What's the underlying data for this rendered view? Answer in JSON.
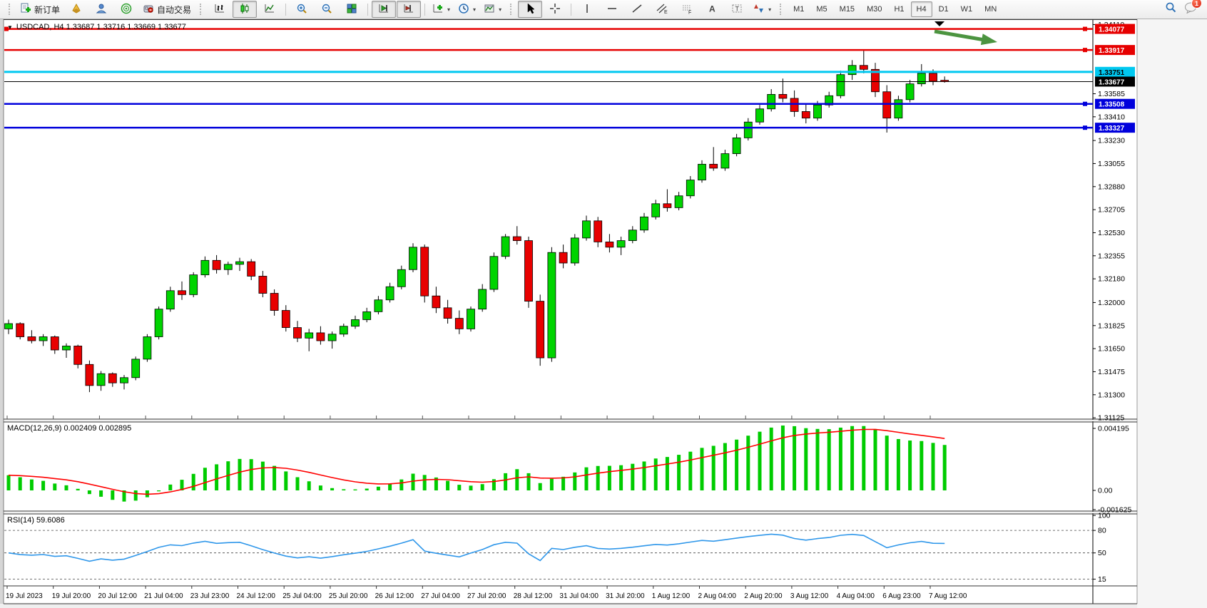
{
  "toolbar": {
    "new_order_label": "新订单",
    "auto_trading_label": "自动交易",
    "timeframes": [
      "M1",
      "M5",
      "M15",
      "M30",
      "H1",
      "H4",
      "D1",
      "W1",
      "MN"
    ],
    "active_timeframe": "H4",
    "notification_count": "1",
    "icon_glyphs": {
      "text_tool": "A",
      "label_tool": "T",
      "channel": "E",
      "fibonacci": "F"
    }
  },
  "chart_data": {
    "type": "candlestick",
    "symbol": "USDCAD",
    "timeframe": "H4",
    "title": "USDCAD, H4  1.33687 1.33716 1.33669 1.33677",
    "ohlc_current": {
      "open": 1.33687,
      "high": 1.33716,
      "low": 1.33669,
      "close": 1.33677
    },
    "colors": {
      "bull": "#00d400",
      "bear": "#e80000",
      "wick": "#000000",
      "macd_hist": "#00cc00",
      "macd_signal": "#ff0000",
      "rsi_line": "#2f97ea",
      "arrow": "#4c9440"
    },
    "price_axis": {
      "min": 1.31115,
      "max": 1.34145,
      "ticks": [
        "1.34110",
        "1.33585",
        "1.33410",
        "1.33230",
        "1.33055",
        "1.32880",
        "1.32705",
        "1.32530",
        "1.32355",
        "1.32180",
        "1.32000",
        "1.31825",
        "1.31650",
        "1.31475",
        "1.31300",
        "1.31125"
      ]
    },
    "time_axis": [
      "19 Jul 2023",
      "19 Jul 20:00",
      "20 Jul 12:00",
      "21 Jul 04:00",
      "23 Jul 23:00",
      "24 Jul 12:00",
      "25 Jul 04:00",
      "25 Jul 20:00",
      "26 Jul 12:00",
      "27 Jul 04:00",
      "27 Jul 20:00",
      "28 Jul 12:00",
      "31 Jul 04:00",
      "31 Jul 20:00",
      "1 Aug 12:00",
      "2 Aug 04:00",
      "2 Aug 20:00",
      "3 Aug 12:00",
      "4 Aug 04:00",
      "6 Aug 23:00",
      "7 Aug 12:00"
    ],
    "price_levels": [
      {
        "price": 1.34077,
        "color": "#e60000",
        "text_color": "#ffffff",
        "width": 2.5,
        "handles": [
          "left",
          "right"
        ]
      },
      {
        "price": 1.33917,
        "color": "#e60000",
        "text_color": "#ffffff",
        "width": 2.5,
        "handles": [
          "right"
        ]
      },
      {
        "price": 1.33751,
        "color": "#00c8f0",
        "text_color": "#000000",
        "width": 3,
        "handles": []
      },
      {
        "price": 1.33677,
        "color": "#000000",
        "text_color": "#ffffff",
        "width": 1,
        "handles": [],
        "current": true
      },
      {
        "price": 1.33508,
        "color": "#0000dc",
        "text_color": "#ffffff",
        "width": 2.5,
        "handles": [
          "right"
        ]
      },
      {
        "price": 1.33327,
        "color": "#0000dc",
        "text_color": "#ffffff",
        "width": 2.5,
        "handles": [
          "right"
        ]
      }
    ],
    "candles": [
      [
        1.318,
        1.3187,
        1.3176,
        1.3184
      ],
      [
        1.3184,
        1.3185,
        1.3172,
        1.3174
      ],
      [
        1.3174,
        1.3179,
        1.3169,
        1.3171
      ],
      [
        1.3171,
        1.3176,
        1.3167,
        1.3174
      ],
      [
        1.3174,
        1.3175,
        1.3161,
        1.3164
      ],
      [
        1.3164,
        1.3169,
        1.3158,
        1.3167
      ],
      [
        1.3167,
        1.3168,
        1.315,
        1.3153
      ],
      [
        1.3153,
        1.3156,
        1.3132,
        1.3137
      ],
      [
        1.3137,
        1.3148,
        1.3133,
        1.3146
      ],
      [
        1.3146,
        1.3147,
        1.3136,
        1.3139
      ],
      [
        1.3139,
        1.3145,
        1.3134,
        1.3143
      ],
      [
        1.3143,
        1.3159,
        1.3141,
        1.3157
      ],
      [
        1.3157,
        1.3176,
        1.3155,
        1.3174
      ],
      [
        1.3174,
        1.3197,
        1.3172,
        1.3195
      ],
      [
        1.3195,
        1.3212,
        1.3193,
        1.3209
      ],
      [
        1.3209,
        1.3216,
        1.3202,
        1.3206
      ],
      [
        1.3206,
        1.3223,
        1.3204,
        1.3221
      ],
      [
        1.3221,
        1.3235,
        1.3219,
        1.3232
      ],
      [
        1.3232,
        1.3236,
        1.3222,
        1.3225
      ],
      [
        1.3225,
        1.3231,
        1.3221,
        1.3229
      ],
      [
        1.3229,
        1.3234,
        1.3224,
        1.3231
      ],
      [
        1.3231,
        1.3233,
        1.3217,
        1.322
      ],
      [
        1.322,
        1.3224,
        1.3204,
        1.3207
      ],
      [
        1.3207,
        1.321,
        1.319,
        1.3194
      ],
      [
        1.3194,
        1.3198,
        1.3178,
        1.3181
      ],
      [
        1.3181,
        1.3186,
        1.317,
        1.3173
      ],
      [
        1.3173,
        1.318,
        1.3163,
        1.3177
      ],
      [
        1.3177,
        1.3182,
        1.3168,
        1.3171
      ],
      [
        1.3171,
        1.3178,
        1.3165,
        1.3176
      ],
      [
        1.3176,
        1.3184,
        1.3174,
        1.3182
      ],
      [
        1.3182,
        1.319,
        1.318,
        1.3187
      ],
      [
        1.3187,
        1.3196,
        1.3185,
        1.3193
      ],
      [
        1.3193,
        1.3205,
        1.3191,
        1.3202
      ],
      [
        1.3202,
        1.3215,
        1.32,
        1.3212
      ],
      [
        1.3212,
        1.3228,
        1.321,
        1.3225
      ],
      [
        1.3225,
        1.3245,
        1.3223,
        1.3242
      ],
      [
        1.3242,
        1.3244,
        1.32,
        1.3205
      ],
      [
        1.3205,
        1.3212,
        1.3192,
        1.3196
      ],
      [
        1.3196,
        1.3202,
        1.3184,
        1.3188
      ],
      [
        1.3188,
        1.3194,
        1.3176,
        1.318
      ],
      [
        1.318,
        1.3197,
        1.3178,
        1.3195
      ],
      [
        1.3195,
        1.3214,
        1.3193,
        1.321
      ],
      [
        1.321,
        1.3238,
        1.3208,
        1.3235
      ],
      [
        1.3235,
        1.3252,
        1.3233,
        1.325
      ],
      [
        1.325,
        1.3258,
        1.3244,
        1.3247
      ],
      [
        1.3247,
        1.325,
        1.3196,
        1.3201
      ],
      [
        1.3201,
        1.3206,
        1.3152,
        1.3158
      ],
      [
        1.3158,
        1.3242,
        1.3155,
        1.3238
      ],
      [
        1.3238,
        1.3244,
        1.3226,
        1.323
      ],
      [
        1.323,
        1.3252,
        1.3228,
        1.3249
      ],
      [
        1.3249,
        1.3266,
        1.3247,
        1.3262
      ],
      [
        1.3262,
        1.3265,
        1.3242,
        1.3246
      ],
      [
        1.3246,
        1.3252,
        1.3238,
        1.3242
      ],
      [
        1.3242,
        1.325,
        1.3236,
        1.3247
      ],
      [
        1.3247,
        1.3258,
        1.3245,
        1.3255
      ],
      [
        1.3255,
        1.3268,
        1.3253,
        1.3265
      ],
      [
        1.3265,
        1.3278,
        1.3263,
        1.3275
      ],
      [
        1.3275,
        1.3286,
        1.3269,
        1.3272
      ],
      [
        1.3272,
        1.3284,
        1.327,
        1.3281
      ],
      [
        1.3281,
        1.3296,
        1.3279,
        1.3293
      ],
      [
        1.3293,
        1.3308,
        1.3291,
        1.3305
      ],
      [
        1.3305,
        1.3318,
        1.33,
        1.3302
      ],
      [
        1.3302,
        1.3316,
        1.33,
        1.3313
      ],
      [
        1.3313,
        1.3328,
        1.3311,
        1.3325
      ],
      [
        1.3325,
        1.334,
        1.3323,
        1.3337
      ],
      [
        1.3337,
        1.335,
        1.3335,
        1.3347
      ],
      [
        1.3347,
        1.3362,
        1.3345,
        1.3358
      ],
      [
        1.3358,
        1.337,
        1.3352,
        1.3355
      ],
      [
        1.3355,
        1.3361,
        1.3341,
        1.3345
      ],
      [
        1.3345,
        1.3351,
        1.3336,
        1.334
      ],
      [
        1.334,
        1.3353,
        1.3338,
        1.335
      ],
      [
        1.335,
        1.336,
        1.3348,
        1.3357
      ],
      [
        1.3357,
        1.3376,
        1.3355,
        1.3373
      ],
      [
        1.3373,
        1.3384,
        1.3369,
        1.338
      ],
      [
        1.338,
        1.3392,
        1.3374,
        1.3377
      ],
      [
        1.3377,
        1.3382,
        1.3356,
        1.336
      ],
      [
        1.336,
        1.3365,
        1.3329,
        1.334
      ],
      [
        1.334,
        1.3357,
        1.3338,
        1.3354
      ],
      [
        1.3354,
        1.3369,
        1.3352,
        1.3366
      ],
      [
        1.3366,
        1.3381,
        1.3364,
        1.3374
      ],
      [
        1.3374,
        1.3377,
        1.3365,
        1.3368
      ],
      [
        1.33687,
        1.33716,
        1.33669,
        1.33677
      ]
    ],
    "macd": {
      "label": "MACD(12,26,9) 0.002409 0.002895",
      "params": [
        12,
        26,
        9
      ],
      "value": 0.002409,
      "signal": 0.002895,
      "axis_ticks": [
        "0.004195",
        "0.00",
        "-0.001625"
      ]
    },
    "rsi": {
      "label": "RSI(14) 59.6086",
      "period": 14,
      "value": 59.6086,
      "axis_ticks": [
        "100",
        "80",
        "50",
        "15"
      ],
      "dashed_levels": [
        80,
        50,
        15
      ]
    }
  }
}
